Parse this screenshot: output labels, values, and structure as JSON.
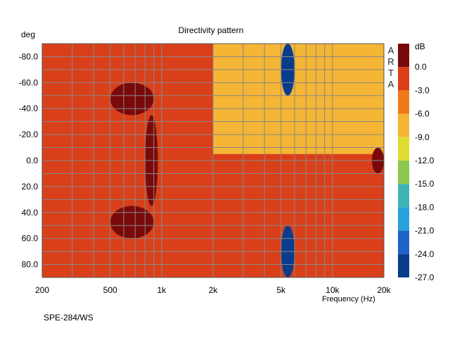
{
  "chart_data": {
    "type": "heatmap",
    "title": "Directivity pattern",
    "xlabel": "Frequency (Hz)",
    "ylabel": "deg",
    "x_scale": "log",
    "xlim": [
      200,
      20000
    ],
    "ylim": [
      -90,
      90
    ],
    "x_ticks": [
      {
        "value": 200,
        "label": "200"
      },
      {
        "value": 500,
        "label": "500"
      },
      {
        "value": 1000,
        "label": "1k"
      },
      {
        "value": 2000,
        "label": "2k"
      },
      {
        "value": 5000,
        "label": "5k"
      },
      {
        "value": 10000,
        "label": "10k"
      },
      {
        "value": 20000,
        "label": "20k"
      }
    ],
    "y_ticks": [
      {
        "value": -80,
        "label": "-80.0"
      },
      {
        "value": -60,
        "label": "-60.0"
      },
      {
        "value": -40,
        "label": "-40.0"
      },
      {
        "value": -20,
        "label": "-20.0"
      },
      {
        "value": 0,
        "label": "0.0"
      },
      {
        "value": 20,
        "label": "20.0"
      },
      {
        "value": 40,
        "label": "40.0"
      },
      {
        "value": 60,
        "label": "60.0"
      },
      {
        "value": 80,
        "label": "80.0"
      }
    ],
    "colorbar": {
      "unit": "dB",
      "levels": [
        {
          "label": "0.0",
          "color": "#7a0a0a"
        },
        {
          "label": "-3.0",
          "color": "#d9401a"
        },
        {
          "label": "-6.0",
          "color": "#f07a1a"
        },
        {
          "label": "-9.0",
          "color": "#f5b535"
        },
        {
          "label": "-12.0",
          "color": "#dede30"
        },
        {
          "label": "-15.0",
          "color": "#8cc850"
        },
        {
          "label": "-18.0",
          "color": "#40b4b4"
        },
        {
          "label": "-21.0",
          "color": "#2aa0dc"
        },
        {
          "label": "-24.0",
          "color": "#1c64c8"
        },
        {
          "label": "-27.0",
          "color": "#0a3c8c"
        }
      ]
    },
    "grid": true,
    "legend_position": "right",
    "freq_grid": [
      200,
      300,
      400,
      500,
      600,
      700,
      800,
      900,
      1000,
      2000,
      3000,
      4000,
      5000,
      6000,
      7000,
      8000,
      9000,
      10000,
      20000
    ],
    "angle_grid": [
      -80,
      -70,
      -60,
      -50,
      -40,
      -30,
      -20,
      -10,
      0,
      10,
      20,
      30,
      40,
      50,
      60,
      70,
      80
    ],
    "features": [
      {
        "kind": "background",
        "freq": [
          200,
          20000
        ],
        "angle": [
          -90,
          90
        ],
        "level_db": -3
      },
      {
        "kind": "region",
        "freq": [
          200,
          2000
        ],
        "angle": [
          -90,
          90
        ],
        "level_db": -3
      },
      {
        "kind": "region",
        "freq": [
          2000,
          20000
        ],
        "angle": [
          -90,
          -5
        ],
        "level_db": -9
      },
      {
        "kind": "blob",
        "freq": [
          500,
          900
        ],
        "angle": [
          -60,
          -35
        ],
        "level_db": 0
      },
      {
        "kind": "blob",
        "freq": [
          800,
          950
        ],
        "angle": [
          -35,
          35
        ],
        "level_db": 0
      },
      {
        "kind": "blob",
        "freq": [
          500,
          900
        ],
        "angle": [
          35,
          60
        ],
        "level_db": 0
      },
      {
        "kind": "blob",
        "freq": [
          5000,
          6000
        ],
        "angle": [
          -90,
          -50
        ],
        "level_db": -27
      },
      {
        "kind": "blob",
        "freq": [
          5000,
          6000
        ],
        "angle": [
          50,
          90
        ],
        "level_db": -27
      },
      {
        "kind": "blob",
        "freq": [
          17000,
          20000
        ],
        "angle": [
          -10,
          10
        ],
        "level_db": 0
      }
    ]
  },
  "footer": {
    "model": "SPE-284/WS"
  },
  "brand": {
    "letters": [
      "A",
      "R",
      "T",
      "A"
    ]
  }
}
